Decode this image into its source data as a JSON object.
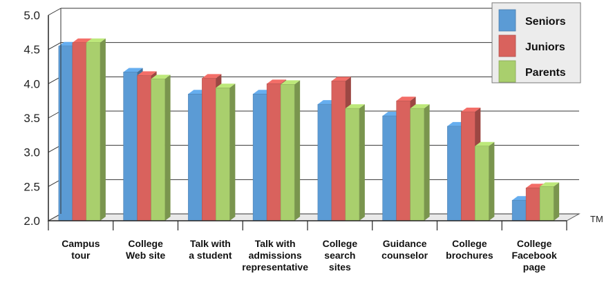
{
  "chart_data": {
    "type": "bar",
    "title": "",
    "xlabel": "",
    "ylabel": "",
    "ylim": [
      2.0,
      5.0
    ],
    "yticks": [
      "2.0",
      "2.5",
      "3.0",
      "3.5",
      "4.0",
      "4.5",
      "5.0"
    ],
    "grid": true,
    "legend_position": "top-right",
    "categories": [
      "Campus tour",
      "College Web site",
      "Talk with a student",
      "Talk with admissions representative",
      "College search sites",
      "Guidance counselor",
      "College brochures",
      "College Facebook page"
    ],
    "category_label_lines": [
      [
        "Campus",
        "tour"
      ],
      [
        "College",
        "Web site"
      ],
      [
        "Talk with",
        "a student"
      ],
      [
        "Talk with",
        "admissions",
        "representative"
      ],
      [
        "College",
        "search",
        "sites"
      ],
      [
        "Guidance",
        "counselor"
      ],
      [
        "College",
        "brochures"
      ],
      [
        "College",
        "Facebook",
        "page"
      ]
    ],
    "series": [
      {
        "name": "Seniors",
        "color": "#5b9bd5",
        "values": [
          4.55,
          4.17,
          3.85,
          3.85,
          3.7,
          3.53,
          3.38,
          2.3
        ]
      },
      {
        "name": "Juniors",
        "color": "#d9625d",
        "values": [
          4.6,
          4.12,
          4.08,
          4.0,
          4.04,
          3.75,
          3.59,
          2.48
        ]
      },
      {
        "name": "Parents",
        "color": "#a9cf6d",
        "values": [
          4.6,
          4.07,
          3.94,
          3.99,
          3.64,
          3.64,
          3.09,
          2.5
        ]
      }
    ]
  },
  "trademark": "TM"
}
